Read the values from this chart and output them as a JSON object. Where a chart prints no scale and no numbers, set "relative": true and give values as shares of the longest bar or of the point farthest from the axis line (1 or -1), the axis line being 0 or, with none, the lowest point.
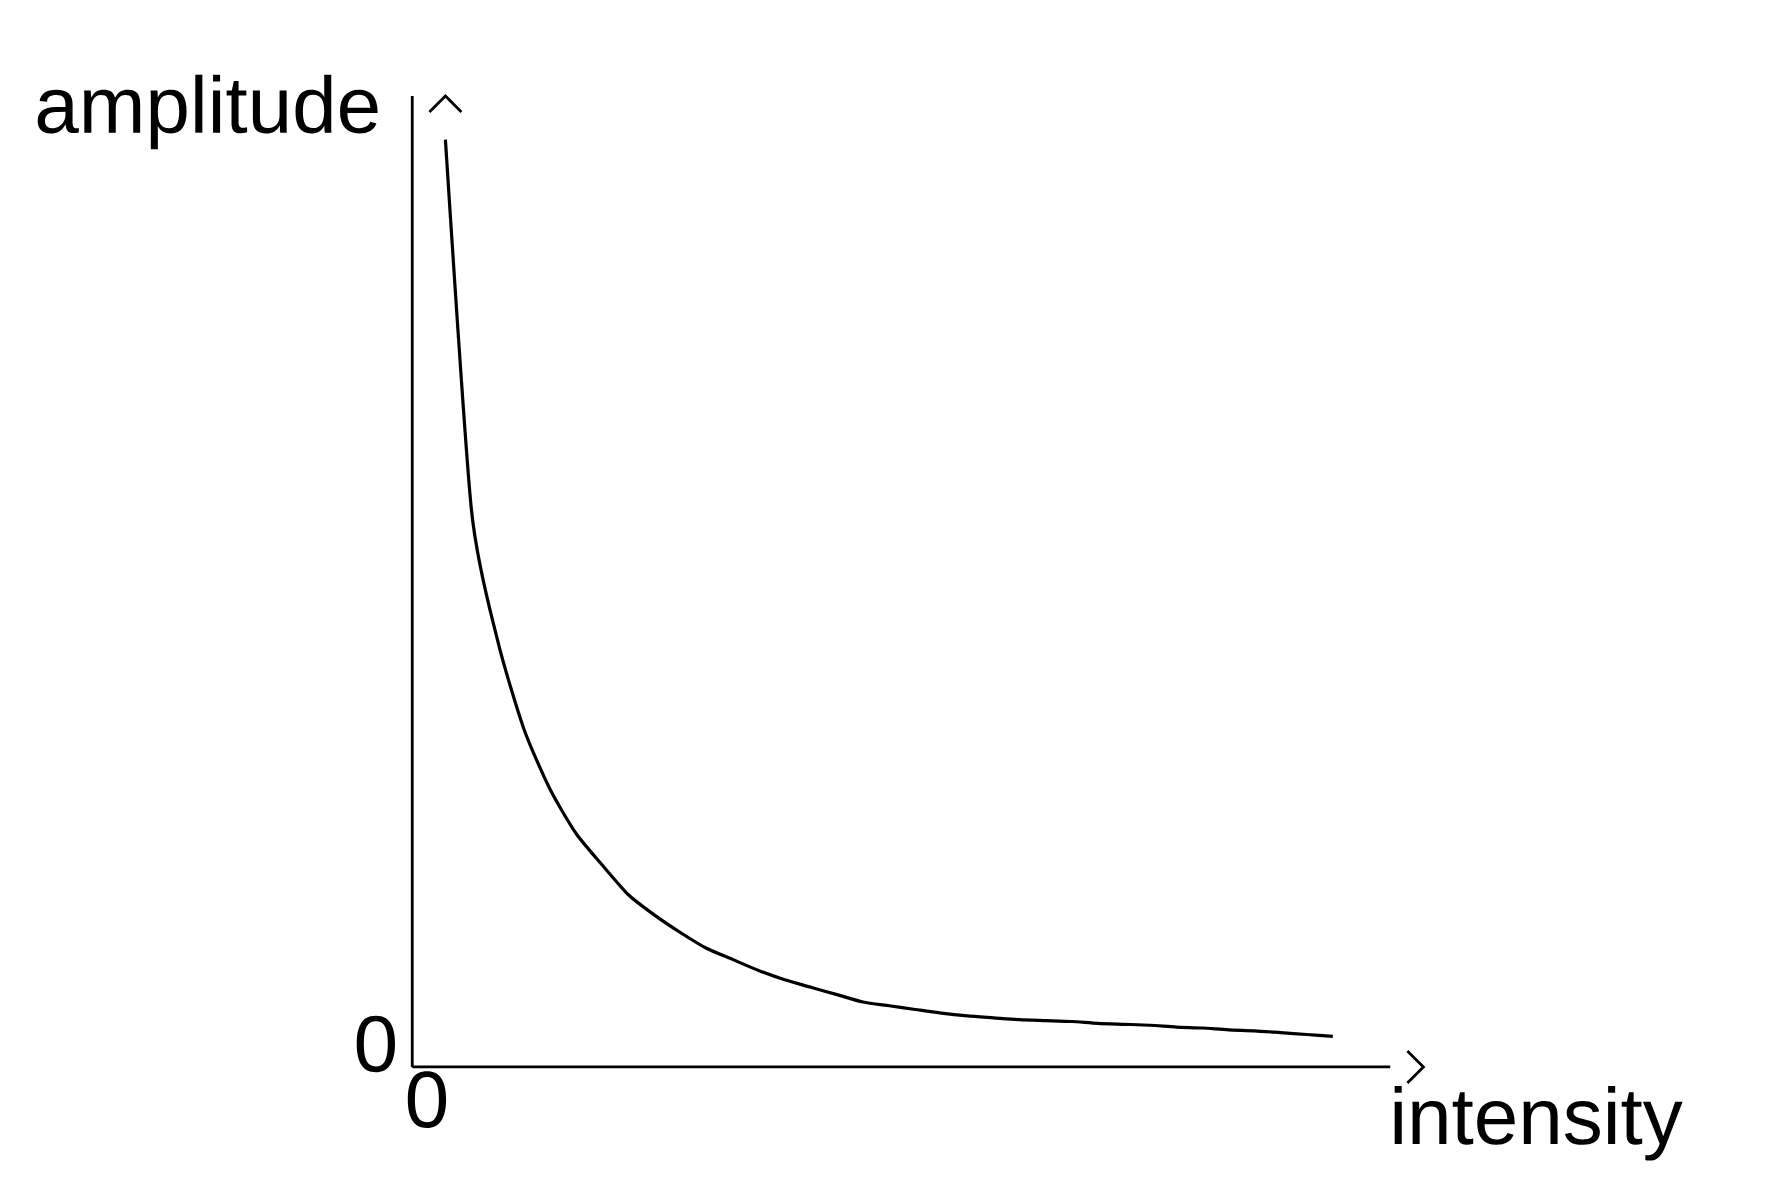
{
  "chart_data": {
    "type": "line",
    "relative": true,
    "xlabel": "intensity",
    "ylabel": "amplitude",
    "annotations": [
      "0",
      "0"
    ],
    "categories": [
      null,
      null,
      null,
      null,
      null,
      null,
      null,
      null,
      null,
      null,
      null,
      null,
      null,
      null,
      null,
      null,
      null,
      null,
      null,
      null,
      null,
      null,
      null,
      null,
      null,
      null,
      null,
      null,
      null,
      null,
      null,
      null,
      null,
      null,
      null
    ],
    "series": [
      {
        "color": "#000000",
        "values": [
          1.0,
          0.6,
          0.46,
          0.365,
          0.3,
          0.252,
          0.218,
          0.186,
          0.164,
          0.145,
          0.128,
          0.116,
          0.104,
          0.094,
          0.086,
          0.078,
          0.07,
          0.066,
          0.062,
          0.058,
          0.055,
          0.053,
          0.051,
          0.05,
          0.049,
          0.047,
          0.046,
          0.045,
          0.043,
          0.042,
          0.04,
          0.039,
          0.037,
          0.035,
          0.033
        ]
      }
    ],
    "grid": false,
    "marker": "none",
    "line_style": "solid"
  }
}
